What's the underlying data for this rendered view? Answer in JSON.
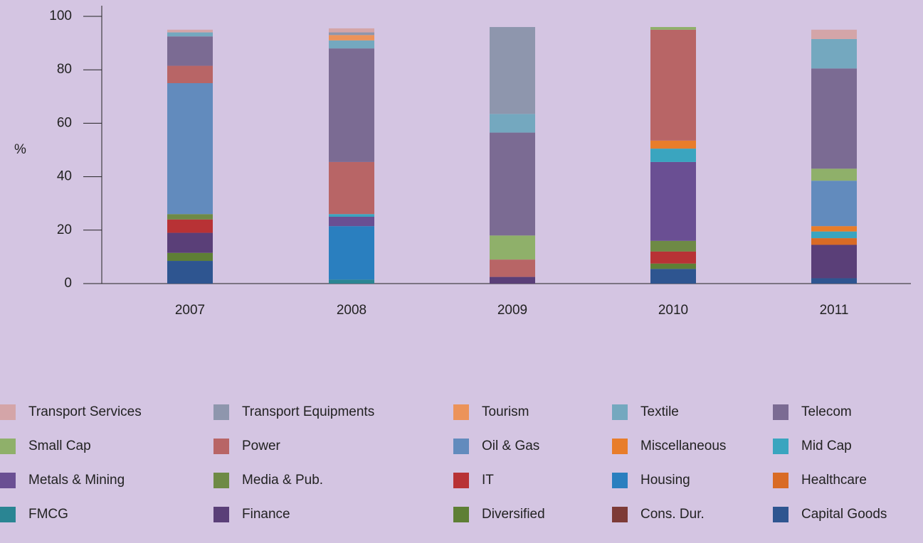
{
  "chart_data": {
    "type": "stacked-bar",
    "ylabel": "%",
    "categories": [
      "2007",
      "2008",
      "2009",
      "2010",
      "2011"
    ],
    "ylim": [
      0,
      100
    ],
    "yticks": [
      0,
      20,
      40,
      60,
      80,
      100
    ],
    "series": [
      {
        "name": "Transport Services",
        "color": "#d4a5a8",
        "values": [
          1,
          1.5,
          0,
          0,
          3.5
        ]
      },
      {
        "name": "Transport Equipments",
        "color": "#8e96ad",
        "values": [
          0,
          1,
          32.5,
          0,
          0
        ]
      },
      {
        "name": "Tourism",
        "color": "#ec935a",
        "values": [
          0,
          2,
          0,
          0,
          0
        ]
      },
      {
        "name": "Textile",
        "color": "#74a8bf",
        "values": [
          1.5,
          3,
          7,
          0,
          11
        ]
      },
      {
        "name": "Telecom",
        "color": "#7b6b93",
        "values": [
          11,
          42.5,
          38.5,
          0,
          37.5
        ]
      },
      {
        "name": "Small Cap",
        "color": "#8fb06a",
        "values": [
          0,
          0,
          9,
          1,
          4.5
        ]
      },
      {
        "name": "Power",
        "color": "#b86566",
        "values": [
          6.5,
          19.5,
          6.5,
          41.5,
          0
        ]
      },
      {
        "name": "Oil & Gas",
        "color": "#628bbd",
        "values": [
          49,
          0,
          0,
          0,
          17
        ]
      },
      {
        "name": "Miscellaneous",
        "color": "#e87d2a",
        "values": [
          0,
          0,
          0,
          3,
          2
        ]
      },
      {
        "name": "Mid Cap",
        "color": "#3aa5bf",
        "values": [
          0,
          1,
          0,
          5,
          2.5
        ]
      },
      {
        "name": "Metals & Mining",
        "color": "#6a4f93",
        "values": [
          0,
          3.5,
          0,
          29.5,
          0
        ]
      },
      {
        "name": "Media & Pub.",
        "color": "#6e8a45",
        "values": [
          2,
          0,
          0,
          4,
          0
        ]
      },
      {
        "name": "IT",
        "color": "#b83235",
        "values": [
          5,
          0,
          0,
          4.5,
          0
        ]
      },
      {
        "name": "Housing",
        "color": "#2a7fbf",
        "values": [
          0,
          20,
          0,
          0,
          0
        ]
      },
      {
        "name": "Healthcare",
        "color": "#d96b25",
        "values": [
          0,
          0,
          0,
          0,
          2.5
        ]
      },
      {
        "name": "FMCG",
        "color": "#2a8593",
        "values": [
          0,
          1.5,
          0,
          0,
          0
        ]
      },
      {
        "name": "Finance",
        "color": "#5a3f78",
        "values": [
          7.5,
          0,
          2.5,
          0,
          12.5
        ]
      },
      {
        "name": "Diversified",
        "color": "#5e7f35",
        "values": [
          3,
          0,
          0,
          2,
          0
        ]
      },
      {
        "name": "Cons. Dur.",
        "color": "#7d3b37",
        "values": [
          0,
          0,
          0,
          0,
          0
        ]
      },
      {
        "name": "Capital Goods",
        "color": "#2e5590",
        "values": [
          8.5,
          0,
          0,
          5.5,
          2
        ]
      }
    ]
  }
}
